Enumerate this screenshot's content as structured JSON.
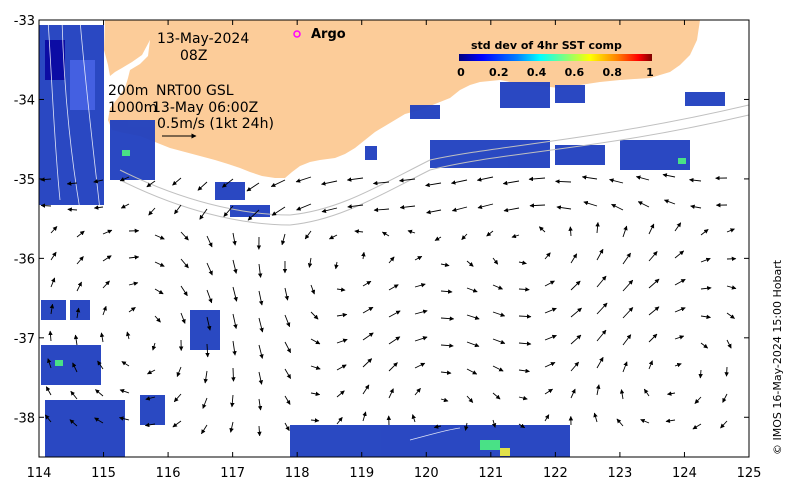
{
  "map": {
    "x_axis": {
      "ticks": [
        114,
        115,
        116,
        117,
        118,
        119,
        120,
        121,
        122,
        123,
        124,
        125
      ]
    },
    "y_axis": {
      "ticks": [
        -33,
        -34,
        -35,
        -36,
        -37,
        -38
      ]
    },
    "colors": {
      "land": "#fccc99",
      "frame": "#000000"
    }
  },
  "annotations": {
    "date": "13-May-2024",
    "time": "08Z",
    "isobath_shallow": "200m",
    "isobath_deep": "1000m",
    "product": "NRT00 GSL",
    "product_time": "13-May 06:00Z",
    "scale_arrow": "0.5m/s (1kt 24h)"
  },
  "legend": {
    "argo_label": "Argo",
    "argo_color": "#ff00ff"
  },
  "colorbar": {
    "title": "std dev of 4hr SST comp",
    "ticks": [
      "0",
      "0.2",
      "0.4",
      "0.6",
      "0.8",
      "1"
    ],
    "colors": [
      "#00007f",
      "#0000ff",
      "#007fff",
      "#00ffff",
      "#7fff7f",
      "#ffff00",
      "#ff7f00",
      "#ff0000",
      "#7f0000"
    ]
  },
  "credit": "© IMOS 16-May-2024 15:00 Hobart"
}
